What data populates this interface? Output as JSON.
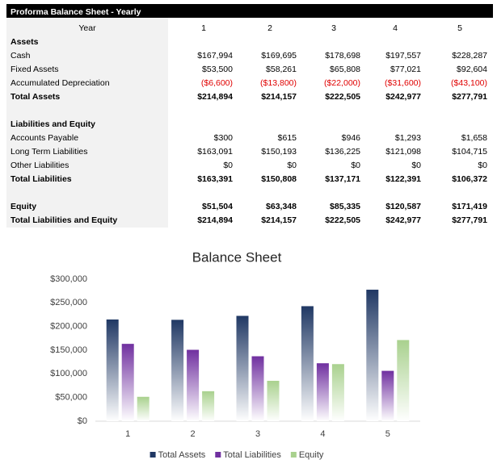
{
  "table": {
    "title": "Proforma Balance Sheet - Yearly",
    "header": [
      "Year",
      "1",
      "2",
      "3",
      "4",
      "5"
    ],
    "groups": [
      {
        "heading": "Assets",
        "rows": [
          {
            "label": "Cash",
            "values": [
              "$167,994",
              "$169,695",
              "$178,698",
              "$197,557",
              "$228,287"
            ]
          },
          {
            "label": "Fixed Assets",
            "values": [
              "$53,500",
              "$58,261",
              "$65,808",
              "$77,021",
              "$92,604"
            ]
          },
          {
            "label": "Accumulated Depreciation",
            "values": [
              "($6,600)",
              "($13,800)",
              "($22,000)",
              "($31,600)",
              "($43,100)"
            ]
          },
          {
            "label": "Total Assets",
            "values": [
              "$214,894",
              "$214,157",
              "$222,505",
              "$242,977",
              "$277,791"
            ],
            "bold": true
          }
        ]
      },
      {
        "heading": "Liabilities and Equity",
        "rows": [
          {
            "label": "Accounts Payable",
            "values": [
              "$300",
              "$615",
              "$946",
              "$1,293",
              "$1,658"
            ]
          },
          {
            "label": "Long Term Liabilities",
            "values": [
              "$163,091",
              "$150,193",
              "$136,225",
              "$121,098",
              "$104,715"
            ]
          },
          {
            "label": "Other Liabilities",
            "values": [
              "$0",
              "$0",
              "$0",
              "$0",
              "$0"
            ]
          },
          {
            "label": "Total Liabilities",
            "values": [
              "$163,391",
              "$150,808",
              "$137,171",
              "$122,391",
              "$106,372"
            ],
            "bold": true
          }
        ]
      },
      {
        "rows": [
          {
            "label": "Equity",
            "values": [
              "$51,504",
              "$63,348",
              "$85,335",
              "$120,587",
              "$171,419"
            ],
            "bold": true
          },
          {
            "label": "Total Liabilities and Equity",
            "values": [
              "$214,894",
              "$214,157",
              "$222,505",
              "$242,977",
              "$277,791"
            ],
            "bold": true
          }
        ]
      }
    ]
  },
  "chart_data": {
    "type": "bar",
    "title": "Balance Sheet",
    "categories": [
      "1",
      "2",
      "3",
      "4",
      "5"
    ],
    "series": [
      {
        "name": "Total Assets",
        "color": "#203864",
        "values": [
          214894,
          214157,
          222505,
          242977,
          277791
        ]
      },
      {
        "name": "Total Liabilities",
        "color": "#7030a0",
        "values": [
          163391,
          150808,
          137171,
          122391,
          106372
        ]
      },
      {
        "name": "Equity",
        "color": "#a9d18e",
        "values": [
          51504,
          63348,
          85335,
          120587,
          171419
        ]
      }
    ],
    "ylim": [
      0,
      300000
    ],
    "yticks": [
      {
        "value": 0,
        "label": "$0"
      },
      {
        "value": 50000,
        "label": "$50,000"
      },
      {
        "value": 100000,
        "label": "$100,000"
      },
      {
        "value": 150000,
        "label": "$150,000"
      },
      {
        "value": 200000,
        "label": "$200,000"
      },
      {
        "value": 250000,
        "label": "$250,000"
      },
      {
        "value": 300000,
        "label": "$300,000"
      }
    ],
    "legend": "bottom"
  }
}
